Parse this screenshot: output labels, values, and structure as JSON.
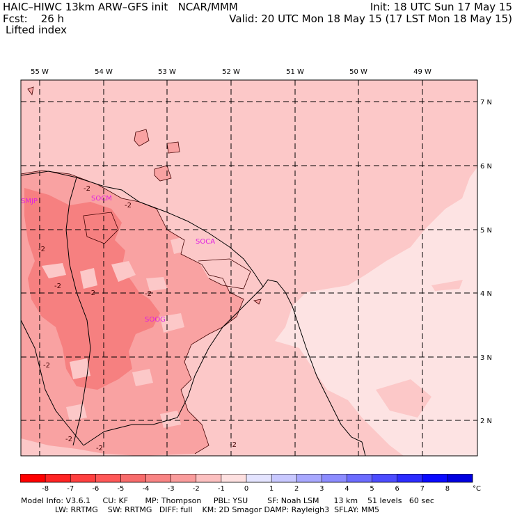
{
  "header": {
    "title_left": "HAIC–HIWC 13km ARW–GFS init   NCAR/MMM",
    "init": "Init: 18 UTC Sun 17 May 15",
    "fcst": "Fcst:    26 h",
    "valid": "Valid: 20 UTC Mon 18 May 15 (17 LST Mon 18 May 15)",
    "field": "Lifted index"
  },
  "map": {
    "lon_labels": [
      "55 W",
      "54 W",
      "53 W",
      "52 W",
      "51 W",
      "50 W",
      "49 W"
    ],
    "lat_labels": [
      "7 N",
      "6 N",
      "5 N",
      "4 N",
      "3 N",
      "2 N"
    ],
    "stations": [
      "SMJP",
      "SOCM",
      "SOCA",
      "SOOG"
    ],
    "contour_labels": [
      "-2",
      "-2",
      "-2",
      "-2",
      "-2",
      "-2",
      "-2",
      "-2",
      "-2",
      "-2"
    ],
    "colors": {
      "very_light": "#fde3e3",
      "light": "#fcc8c8",
      "medium": "#f9a2a2",
      "strong": "#f68080",
      "station": "#e020e0"
    }
  },
  "colorbar": {
    "ticks": [
      "-8",
      "-7",
      "-6",
      "-5",
      "-4",
      "-3",
      "-2",
      "-1",
      "0",
      "1",
      "2",
      "3",
      "4",
      "5",
      "6",
      "7",
      "8"
    ],
    "unit": "°C",
    "colors": [
      "#ff0000",
      "#ff2424",
      "#ff4040",
      "#ff5858",
      "#f86c6c",
      "#f98484",
      "#fa9c9c",
      "#fcc0c0",
      "#fde0e0",
      "#e4e4ff",
      "#c8c8ff",
      "#a8a8ff",
      "#8c8cff",
      "#6c6cff",
      "#4c4cff",
      "#2c2cff",
      "#0a0aff",
      "#0000e0"
    ]
  },
  "footer": {
    "line1": "Model Info: V3.6.1     CU: KF       MP: Thompson     PBL: YSU        SF: Noah LSM      13 km    51 levels   60 sec",
    "line2": "              LW: RRTMG    SW: RRTMG   DIFF: full    KM: 2D Smagor DAMP: Rayleigh3  SFLAY: MM5"
  }
}
